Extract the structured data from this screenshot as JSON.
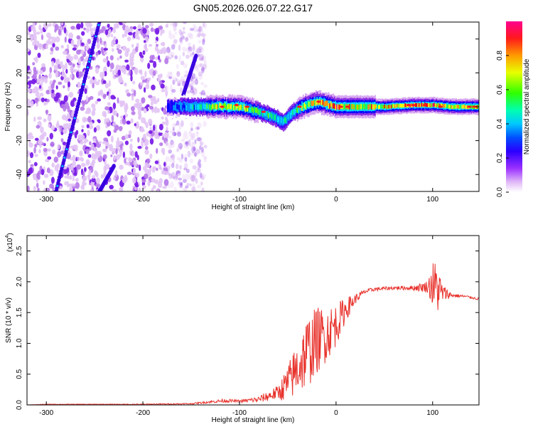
{
  "title": "GN05.2026.026.07.22.G17",
  "chart_data": [
    {
      "type": "heatmap",
      "xlabel": "Height of straight line (km)",
      "ylabel": "Frequency (Hz)",
      "xlim": [
        -320,
        148
      ],
      "ylim": [
        -50,
        50
      ],
      "xticks": [
        -300,
        -200,
        -100,
        0,
        100
      ],
      "yticks": [
        -40,
        -20,
        0,
        20,
        40
      ],
      "colorbar": {
        "label": "Normalized spectral amplitude",
        "range": [
          0,
          1
        ],
        "ticks": [
          "0.0",
          "0.2",
          "0.4",
          "0.6",
          "0.8"
        ],
        "colors": [
          "#ffffff",
          "#d8a8f0",
          "#8a2be2",
          "#3b00ff",
          "#0000ff",
          "#0096ff",
          "#00e5ff",
          "#00ff66",
          "#66ff00",
          "#ffff00",
          "#ff9900",
          "#ff0000",
          "#ff00aa"
        ]
      },
      "noise_region_x": [
        -320,
        -135
      ],
      "diagonal_tracks": [
        {
          "x": [
            -290,
            -245
          ],
          "y": [
            -50,
            50
          ]
        },
        {
          "x": [
            -245,
            -230
          ],
          "y": [
            -50,
            -35
          ]
        },
        {
          "x": [
            -165,
            -145
          ],
          "y": [
            -5,
            30
          ]
        }
      ],
      "ridge": {
        "x": [
          -175,
          -140,
          -120,
          -100,
          -80,
          -65,
          -55,
          -45,
          -35,
          -20,
          0,
          20,
          50,
          80,
          100,
          120,
          148
        ],
        "y": [
          0,
          0,
          0,
          0,
          -3,
          -6,
          -9,
          -3,
          0,
          3,
          0,
          0,
          0,
          1,
          1,
          0,
          0
        ],
        "amplitude": [
          0.35,
          0.55,
          0.75,
          0.7,
          0.6,
          0.55,
          0.5,
          0.55,
          0.7,
          0.8,
          0.85,
          0.75,
          0.8,
          0.9,
          0.85,
          0.75,
          0.8
        ]
      }
    },
    {
      "type": "line",
      "xlabel": "Height of straight line (km)",
      "ylabel": "SNR (10 * v/v)",
      "yscale_label": "(x10",
      "yscale_exp": "4",
      "xlim": [
        -320,
        148
      ],
      "ylim": [
        0,
        2.75
      ],
      "xticks": [
        -300,
        -200,
        -100,
        0,
        100
      ],
      "yticks": [
        "0.0",
        "0.5",
        "1.0",
        "1.5",
        "2.0",
        "2.5"
      ],
      "series": [
        {
          "color": "#e8322c",
          "x": [
            -320,
            -300,
            -250,
            -200,
            -150,
            -130,
            -115,
            -100,
            -80,
            -60,
            -50,
            -40,
            -30,
            -20,
            -10,
            0,
            10,
            20,
            30,
            40,
            60,
            80,
            95,
            100,
            105,
            110,
            120,
            135,
            148
          ],
          "y": [
            0.0,
            0.01,
            0.01,
            0.01,
            0.02,
            0.05,
            0.07,
            0.06,
            0.09,
            0.2,
            0.35,
            0.6,
            0.85,
            1.05,
            1.15,
            1.3,
            1.55,
            1.72,
            1.84,
            1.88,
            1.9,
            1.9,
            1.92,
            1.95,
            1.9,
            1.82,
            1.78,
            1.76,
            1.72
          ],
          "noise_amp": [
            0,
            0.005,
            0.005,
            0.008,
            0.01,
            0.02,
            0.03,
            0.02,
            0.05,
            0.12,
            0.3,
            0.45,
            0.6,
            0.55,
            0.45,
            0.35,
            0.2,
            0.08,
            0.04,
            0.03,
            0.03,
            0.04,
            0.1,
            0.4,
            0.45,
            0.15,
            0.03,
            0.02,
            0.02
          ]
        }
      ]
    }
  ]
}
